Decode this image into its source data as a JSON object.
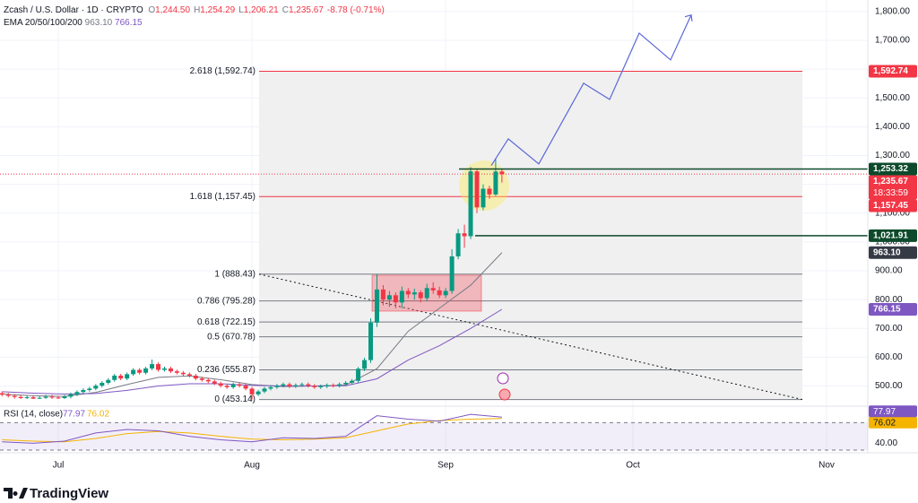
{
  "header": {
    "symbol": "Zcash / U.S. Dollar · 1D · CRYPTO",
    "ohlc": [
      [
        "O",
        "1,244.50"
      ],
      [
        "H",
        "1,254.29"
      ],
      [
        "L",
        "1,206.21"
      ],
      [
        "C",
        "1,235.67"
      ]
    ],
    "change": "-8.78 (-0.71%)"
  },
  "brand": "TradingView",
  "chart_data": {
    "type": "candlestick",
    "ylim": [
      430,
      1840
    ],
    "yticks": [
      {
        "value": 1800,
        "label": "1,800.00"
      },
      {
        "value": 1700,
        "label": "1,700.00"
      },
      {
        "value": 1600,
        "label": "1,600.00"
      },
      {
        "value": 1500,
        "label": "1,500.00"
      },
      {
        "value": 1400,
        "label": "1,400.00"
      },
      {
        "value": 1300,
        "label": "1,300.00"
      },
      {
        "value": 1200,
        "label": "1,200.00"
      },
      {
        "value": 1100,
        "label": "1,100.00"
      },
      {
        "value": 1000,
        "label": "1,000.00"
      },
      {
        "value": 900,
        "label": "900.00"
      },
      {
        "value": 800,
        "label": "800.00"
      },
      {
        "value": 700,
        "label": "700.00"
      },
      {
        "value": 600,
        "label": "600.00"
      },
      {
        "value": 500,
        "label": "500.00"
      }
    ],
    "xticks": [
      "Jul",
      "Aug",
      "Sep",
      "Oct",
      "Nov"
    ],
    "grid": true,
    "up_color": "#089981",
    "down_color": "#f23645",
    "open": [
      475,
      470,
      466,
      462,
      458,
      461,
      456,
      459,
      463,
      460,
      458,
      463,
      471,
      479,
      486,
      491,
      501,
      511,
      521,
      536,
      526,
      541,
      556,
      546,
      561,
      576,
      556,
      561,
      551,
      546,
      541,
      536,
      526,
      521,
      516,
      509,
      501,
      496,
      506,
      501,
      491,
      471,
      481,
      491,
      496,
      501,
      506,
      499,
      503,
      506,
      501,
      496,
      499,
      503,
      501,
      506,
      511,
      518,
      560,
      590,
      720,
      835,
      800,
      815,
      790,
      830,
      818,
      825,
      805,
      840,
      832,
      815,
      830,
      950,
      1030,
      1020,
      1245,
      1120,
      1185,
      1165,
      1244.5
    ],
    "high": [
      481,
      476,
      472,
      468,
      467,
      467,
      465,
      469,
      469,
      466,
      469,
      477,
      485,
      492,
      497,
      507,
      517,
      527,
      542,
      542,
      547,
      562,
      562,
      567,
      592,
      582,
      567,
      567,
      557,
      552,
      547,
      542,
      532,
      527,
      522,
      515,
      507,
      512,
      512,
      507,
      497,
      487,
      497,
      502,
      507,
      512,
      512,
      509,
      512,
      512,
      507,
      505,
      509,
      509,
      512,
      517,
      524,
      566,
      598,
      735,
      888.43,
      850,
      830,
      825,
      845,
      840,
      838,
      832,
      855,
      860,
      845,
      840,
      975,
      1045,
      1060,
      1260,
      1255,
      1200,
      1195,
      1290,
      1254.29
    ],
    "low": [
      464,
      460,
      456,
      455,
      455,
      455,
      455,
      455,
      455,
      455,
      455,
      457,
      465,
      473,
      480,
      485,
      495,
      505,
      515,
      520,
      520,
      535,
      540,
      540,
      555,
      550,
      550,
      545,
      540,
      535,
      530,
      520,
      515,
      510,
      503,
      495,
      490,
      490,
      495,
      485,
      453.14,
      465,
      475,
      485,
      490,
      495,
      493,
      493,
      497,
      495,
      490,
      490,
      493,
      495,
      495,
      500,
      505,
      512,
      552,
      580,
      705,
      780,
      775,
      770,
      770,
      805,
      800,
      790,
      795,
      820,
      805,
      805,
      820,
      940,
      980,
      1010,
      1100,
      1110,
      1150,
      1160,
      1206.21
    ],
    "close": [
      470,
      466,
      462,
      458,
      461,
      456,
      459,
      463,
      460,
      458,
      463,
      471,
      479,
      486,
      491,
      501,
      511,
      521,
      536,
      526,
      541,
      556,
      546,
      561,
      576,
      556,
      561,
      551,
      546,
      541,
      536,
      526,
      521,
      516,
      509,
      501,
      496,
      506,
      501,
      491,
      471,
      481,
      491,
      496,
      501,
      506,
      499,
      503,
      506,
      501,
      496,
      499,
      503,
      501,
      506,
      511,
      518,
      560,
      590,
      720,
      835,
      800,
      815,
      790,
      830,
      818,
      825,
      805,
      840,
      832,
      815,
      830,
      950,
      1030,
      1020,
      1245,
      1120,
      1185,
      1165,
      1244.5,
      1235.67
    ],
    "ema": {
      "title": "EMA 20/50/100/200",
      "series": [
        {
          "color": "#787b86",
          "values": [
            472,
            466,
            464,
            478,
            505,
            530,
            535,
            522,
            505,
            498,
            500,
            503,
            560,
            690,
            770,
            850,
            963.1
          ],
          "last_label": "963.10"
        },
        {
          "color": "#7e57c2",
          "values": [
            480,
            475,
            472,
            474,
            485,
            500,
            508,
            508,
            502,
            500,
            500,
            501,
            525,
            590,
            640,
            700,
            766.15
          ],
          "last_label": "766.15"
        }
      ]
    },
    "fib_levels": [
      {
        "label": "2.618 (1,592.74)",
        "value": 1592.74,
        "color": "#f23645"
      },
      {
        "label": "1.618 (1,157.45)",
        "value": 1157.45,
        "color": "#f23645"
      },
      {
        "label": "1 (888.43)",
        "value": 888.43,
        "color": "#787b86"
      },
      {
        "label": "0.786 (795.28)",
        "value": 795.28,
        "color": "#787b86"
      },
      {
        "label": "0.618 (722.15)",
        "value": 722.15,
        "color": "#787b86"
      },
      {
        "label": "0.5 (670.78)",
        "value": 670.78,
        "color": "#787b86"
      },
      {
        "label": "0.236 (555.87)",
        "value": 555.87,
        "color": "#787b86"
      },
      {
        "label": "0 (453.14)",
        "value": 453.14,
        "color": "#787b86"
      }
    ],
    "projection": {
      "color": "#5b67d8",
      "values": [
        1265,
        1358,
        1271,
        1551,
        1495,
        1725,
        1632,
        1788
      ]
    },
    "price_tags": [
      {
        "value": 1592.74,
        "label": "1,592.74",
        "color": "#f23645"
      },
      {
        "value": 1253.32,
        "label": "1,253.32",
        "color": "#0d4a2b"
      },
      {
        "value": 1235.67,
        "label": "1,235.67",
        "color": "#f23645",
        "countdown": "18:33:59"
      },
      {
        "value": 1157.45,
        "label": "1,157.45",
        "color": "#f23645"
      },
      {
        "value": 1021.91,
        "label": "1,021.91",
        "color": "#0d4a2b"
      },
      {
        "value": 963.1,
        "label": "963.10",
        "color": "#363a45"
      },
      {
        "value": 766.15,
        "label": "766.15",
        "color": "#7e57c2"
      }
    ],
    "rsi": {
      "title": "RSI (14, close)",
      "ylim": [
        30,
        90
      ],
      "yticks": [
        {
          "value": 40,
          "label": "40.00"
        }
      ],
      "levels": [
        70,
        30
      ],
      "line": {
        "color": "#7e57c2",
        "values": [
          42,
          40,
          43,
          55,
          60,
          58,
          50,
          45,
          42,
          48,
          47,
          50,
          80,
          75,
          72,
          82,
          77.97
        ],
        "last_label": "77.97"
      },
      "ma": {
        "color": "#f4b400",
        "values": [
          45,
          43,
          42,
          47,
          54,
          57,
          55,
          50,
          46,
          45,
          46,
          48,
          58,
          68,
          73,
          75,
          76.02
        ],
        "last_label": "76.02"
      }
    }
  }
}
